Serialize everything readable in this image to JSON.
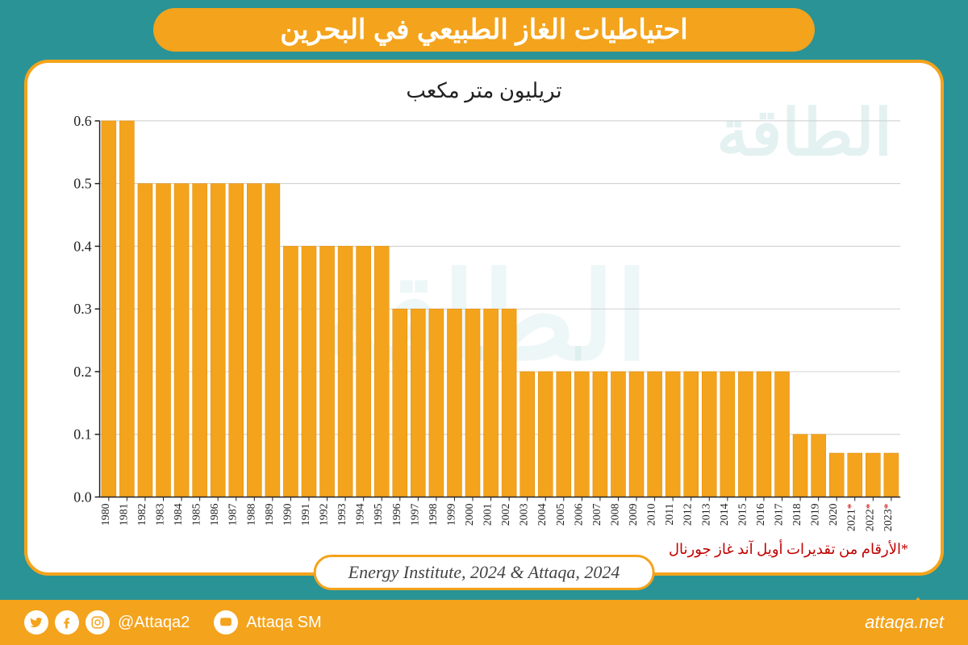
{
  "title": "احتياطيات الغاز الطبيعي في البحرين",
  "subtitle": "تريليون متر مكعب",
  "chart": {
    "type": "bar",
    "bar_color": "#f4a31c",
    "bar_edge": "#e08900",
    "grid_color": "#cccccc",
    "axis_color": "#222222",
    "background_color": "#ffffff",
    "ylim": [
      0,
      0.6
    ],
    "ytick_step": 0.1,
    "yticks": [
      "0.0",
      "0.1",
      "0.2",
      "0.3",
      "0.4",
      "0.5",
      "0.6"
    ],
    "bar_width": 0.8,
    "label_fontsize": 14,
    "ylabel_fontsize": 18,
    "years": [
      1980,
      1981,
      1982,
      1983,
      1984,
      1985,
      1986,
      1987,
      1988,
      1989,
      1990,
      1991,
      1992,
      1993,
      1994,
      1995,
      1996,
      1997,
      1998,
      1999,
      2000,
      2001,
      2002,
      2003,
      2004,
      2005,
      2006,
      2007,
      2008,
      2009,
      2010,
      2011,
      2012,
      2013,
      2014,
      2015,
      2016,
      2017,
      2018,
      2019,
      2020,
      2021,
      2022,
      2023
    ],
    "values": [
      0.6,
      0.6,
      0.5,
      0.5,
      0.5,
      0.5,
      0.5,
      0.5,
      0.5,
      0.5,
      0.4,
      0.4,
      0.4,
      0.4,
      0.4,
      0.4,
      0.3,
      0.3,
      0.3,
      0.3,
      0.3,
      0.3,
      0.3,
      0.2,
      0.2,
      0.2,
      0.2,
      0.2,
      0.2,
      0.2,
      0.2,
      0.2,
      0.2,
      0.2,
      0.2,
      0.2,
      0.2,
      0.2,
      0.1,
      0.1,
      0.07,
      0.07,
      0.07,
      0.07
    ],
    "star_years": [
      2021,
      2022,
      2023
    ]
  },
  "footnote": "*الأرقام من تقديرات أويل آند غاز جورنال",
  "source": "Energy Institute, 2024 & Attaqa, 2024",
  "brand": {
    "name": "الطاقة",
    "sub": "ATTAQA"
  },
  "footer": {
    "handle1": "@Attaqa2",
    "handle2": "Attaqa SM",
    "site": "attaqa.net"
  },
  "colors": {
    "bg": "#2a9396",
    "accent": "#f4a31c",
    "panel_border": "#f4a31c",
    "footnote": "#c00000",
    "white": "#ffffff"
  },
  "typography": {
    "title_fontsize": 34,
    "subtitle_fontsize": 26,
    "source_fontsize": 22
  }
}
